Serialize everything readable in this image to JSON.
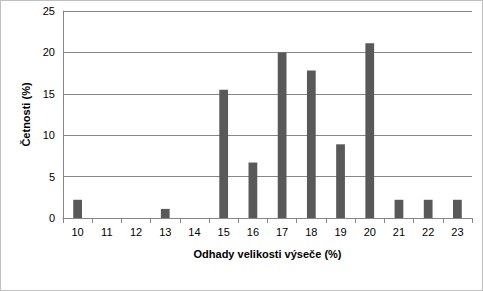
{
  "chart_data": {
    "type": "bar",
    "x_label": "Odhady velikosti výseče (%)",
    "y_label": "Četnosti (%)",
    "categories": [
      "10",
      "11",
      "12",
      "13",
      "14",
      "15",
      "16",
      "17",
      "18",
      "19",
      "20",
      "21",
      "22",
      "23"
    ],
    "values": [
      2.2,
      0,
      0,
      1.1,
      0,
      15.5,
      6.7,
      20,
      17.8,
      8.9,
      21.1,
      2.2,
      2.2,
      2.2
    ],
    "color": "#595959",
    "ylim": [
      0,
      25
    ],
    "yticks": [
      0,
      5,
      10,
      15,
      20,
      25
    ],
    "grid": true
  }
}
